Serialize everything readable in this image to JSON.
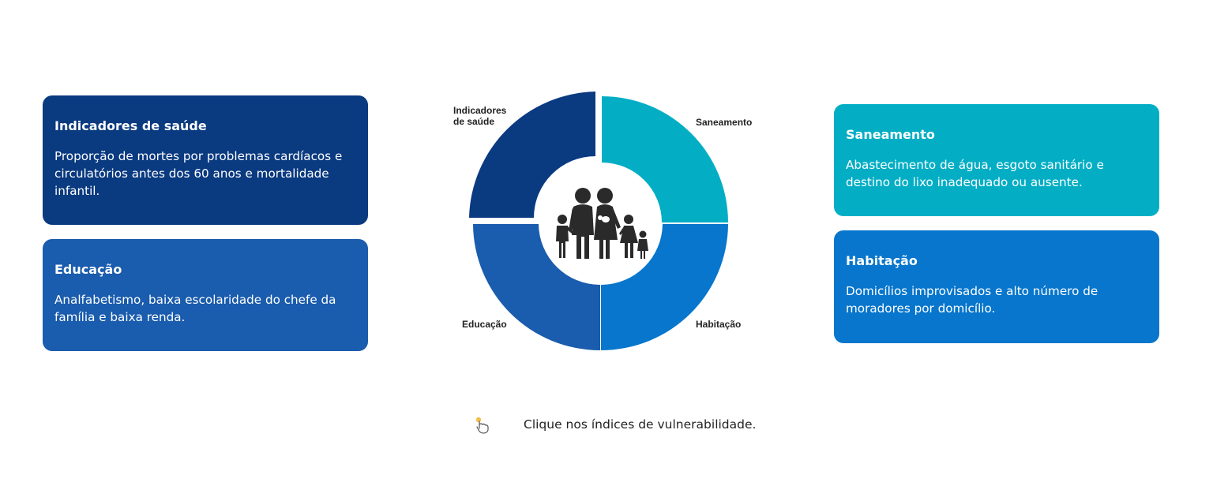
{
  "colors": {
    "saude": "#0a3a80",
    "educacao": "#1a5cad",
    "saneamento": "#03aec5",
    "habitacao": "#0776cc",
    "family": "#2a2a2a"
  },
  "cards": {
    "saude": {
      "title": "Indicadores de saúde",
      "body": "Proporção de mortes por problemas cardíacos e circulatórios antes dos 60 anos e mortalidade infantil."
    },
    "educacao": {
      "title": "Educação",
      "body": "Analfabetismo, baixa escolaridade do chefe da família e baixa renda."
    },
    "saneamento": {
      "title": "Saneamento",
      "body": "Abastecimento de água, esgoto sanitário e destino do lixo inadequado ou ausente."
    },
    "habitacao": {
      "title": "Habitação",
      "body": "Domicílios improvisados e alto número de moradores por domicílio."
    }
  },
  "diagram": {
    "labels": {
      "saude": "Indicadores\nde saúde",
      "saneamento": "Saneamento",
      "educacao": "Educação",
      "habitacao": "Habitação"
    },
    "center_icon": "family-icon"
  },
  "hint": {
    "icon": "pointer-hand-icon",
    "text": "Clique nos índices de vulnerabilidade."
  }
}
